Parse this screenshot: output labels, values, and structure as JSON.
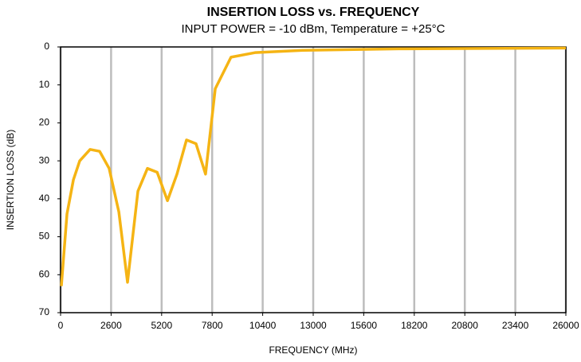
{
  "chart_data": {
    "type": "line",
    "title": "INSERTION LOSS vs. FREQUENCY",
    "subtitle": "INPUT POWER = -10 dBm, Temperature = +25°C",
    "x_label": "FREQUENCY (MHz)",
    "y_label": "INSERTION LOSS (dB)",
    "x": [
      40,
      330,
      660,
      985,
      1520,
      2010,
      2500,
      3000,
      3445,
      3980,
      4470,
      4970,
      5500,
      5990,
      6480,
      6970,
      7460,
      7960,
      8770,
      10000,
      12470,
      17400,
      26000
    ],
    "series": [
      {
        "name": "Insertion Loss",
        "color": "#f5b414",
        "values": [
          63,
          44,
          35,
          30,
          27,
          27.5,
          32,
          43.5,
          62,
          38,
          32,
          33,
          40.5,
          33.5,
          24.5,
          25.5,
          33.5,
          11,
          2.7,
          1.5,
          0.9,
          0.5,
          0.3
        ]
      }
    ],
    "xlim": [
      0,
      26000
    ],
    "xticks": [
      0,
      2600,
      5200,
      7800,
      10400,
      13000,
      15600,
      18200,
      20800,
      23400,
      26000
    ],
    "ylim": [
      0,
      70
    ],
    "yticks": [
      0,
      10,
      20,
      30,
      40,
      50,
      60,
      70
    ],
    "y_inverted": true,
    "grid": "x"
  }
}
